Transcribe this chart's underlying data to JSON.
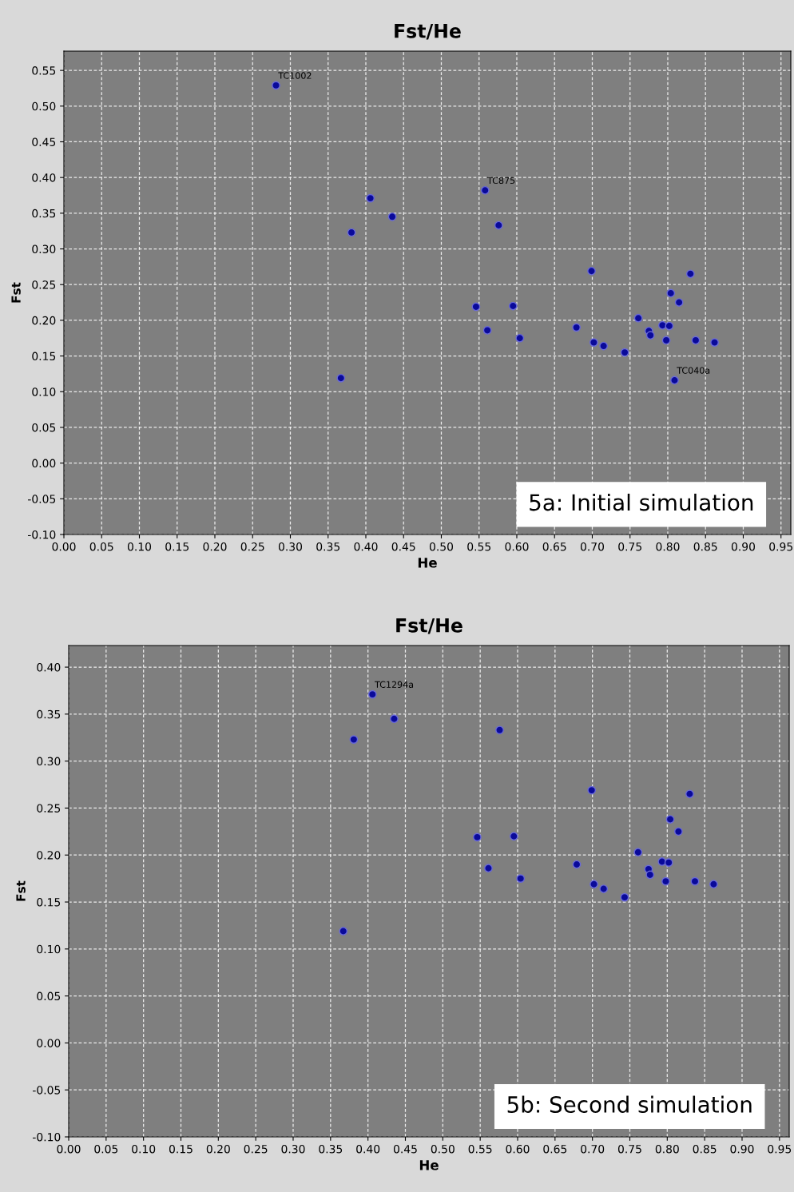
{
  "chart_data": [
    {
      "type": "scatter",
      "title": "Fst/He",
      "xlabel": "He",
      "ylabel": "Fst",
      "xlim": [
        0,
        0.963
      ],
      "ylim": [
        -0.1,
        0.577
      ],
      "xticks": [
        {
          "value": 0,
          "label": "0.00"
        },
        {
          "value": 0.05,
          "label": "0.05"
        },
        {
          "value": 0.1,
          "label": "0.10"
        },
        {
          "value": 0.15,
          "label": "0.15"
        },
        {
          "value": 0.2,
          "label": "0.20"
        },
        {
          "value": 0.25,
          "label": "0.25"
        },
        {
          "value": 0.3,
          "label": "0.30"
        },
        {
          "value": 0.35,
          "label": "0.35"
        },
        {
          "value": 0.4,
          "label": "0.40"
        },
        {
          "value": 0.45,
          "label": "0.45"
        },
        {
          "value": 0.5,
          "label": "0.50"
        },
        {
          "value": 0.55,
          "label": "0.55"
        },
        {
          "value": 0.6,
          "label": "0.60"
        },
        {
          "value": 0.65,
          "label": "0.65"
        },
        {
          "value": 0.7,
          "label": "0.70"
        },
        {
          "value": 0.75,
          "label": "0.75"
        },
        {
          "value": 0.8,
          "label": "0.80"
        },
        {
          "value": 0.85,
          "label": "0.85"
        },
        {
          "value": 0.9,
          "label": "0.90"
        },
        {
          "value": 0.95,
          "label": "0.95"
        }
      ],
      "yticks": [
        {
          "value": -0.1,
          "label": "-0.10"
        },
        {
          "value": -0.05,
          "label": "-0.05"
        },
        {
          "value": 0,
          "label": "0.00"
        },
        {
          "value": 0.05,
          "label": "0.05"
        },
        {
          "value": 0.1,
          "label": "0.10"
        },
        {
          "value": 0.15,
          "label": "0.15"
        },
        {
          "value": 0.2,
          "label": "0.20"
        },
        {
          "value": 0.25,
          "label": "0.25"
        },
        {
          "value": 0.3,
          "label": "0.30"
        },
        {
          "value": 0.35,
          "label": "0.35"
        },
        {
          "value": 0.4,
          "label": "0.40"
        },
        {
          "value": 0.45,
          "label": "0.45"
        },
        {
          "value": 0.5,
          "label": "0.50"
        },
        {
          "value": 0.55,
          "label": "0.55"
        }
      ],
      "grid": true,
      "legend": false,
      "marker": "circle",
      "series": [
        {
          "color": "#0a0a9a",
          "x": [
            0.281,
            0.406,
            0.381,
            0.435,
            0.367,
            0.558,
            0.576,
            0.546,
            0.561,
            0.595,
            0.604,
            0.699,
            0.679,
            0.702,
            0.715,
            0.743,
            0.761,
            0.775,
            0.777,
            0.793,
            0.802,
            0.798,
            0.804,
            0.815,
            0.83,
            0.837,
            0.862,
            0.809
          ],
          "values": [
            0.529,
            0.371,
            0.323,
            0.345,
            0.119,
            0.382,
            0.333,
            0.219,
            0.186,
            0.22,
            0.175,
            0.269,
            0.19,
            0.169,
            0.164,
            0.155,
            0.203,
            0.185,
            0.179,
            0.193,
            0.192,
            0.172,
            0.238,
            0.225,
            0.265,
            0.172,
            0.169,
            0.116
          ]
        }
      ],
      "annotations": [
        {
          "text": "TC1002",
          "x": 0.281,
          "y": 0.529
        },
        {
          "text": "TC875",
          "x": 0.558,
          "y": 0.382
        },
        {
          "text": "TC040a",
          "x": 0.809,
          "y": 0.116
        },
        "5a: Initial simulation"
      ]
    },
    {
      "type": "scatter",
      "title": "Fst/He",
      "xlabel": "He",
      "ylabel": "Fst",
      "xlim": [
        0,
        0.963
      ],
      "ylim": [
        -0.1,
        0.423
      ],
      "xticks": [
        {
          "value": 0,
          "label": "0.00"
        },
        {
          "value": 0.05,
          "label": "0.05"
        },
        {
          "value": 0.1,
          "label": "0.10"
        },
        {
          "value": 0.15,
          "label": "0.15"
        },
        {
          "value": 0.2,
          "label": "0.20"
        },
        {
          "value": 0.25,
          "label": "0.25"
        },
        {
          "value": 0.3,
          "label": "0.30"
        },
        {
          "value": 0.35,
          "label": "0.35"
        },
        {
          "value": 0.4,
          "label": "0.40"
        },
        {
          "value": 0.45,
          "label": "0.45"
        },
        {
          "value": 0.5,
          "label": "0.50"
        },
        {
          "value": 0.55,
          "label": "0.55"
        },
        {
          "value": 0.6,
          "label": "0.60"
        },
        {
          "value": 0.65,
          "label": "0.65"
        },
        {
          "value": 0.7,
          "label": "0.70"
        },
        {
          "value": 0.75,
          "label": "0.75"
        },
        {
          "value": 0.8,
          "label": "0.80"
        },
        {
          "value": 0.85,
          "label": "0.85"
        },
        {
          "value": 0.9,
          "label": "0.90"
        },
        {
          "value": 0.95,
          "label": "0.95"
        }
      ],
      "yticks": [
        {
          "value": -0.1,
          "label": "-0.10"
        },
        {
          "value": -0.05,
          "label": "-0.05"
        },
        {
          "value": 0,
          "label": "0.00"
        },
        {
          "value": 0.05,
          "label": "0.05"
        },
        {
          "value": 0.1,
          "label": "0.10"
        },
        {
          "value": 0.15,
          "label": "0.15"
        },
        {
          "value": 0.2,
          "label": "0.20"
        },
        {
          "value": 0.25,
          "label": "0.25"
        },
        {
          "value": 0.3,
          "label": "0.30"
        },
        {
          "value": 0.35,
          "label": "0.35"
        },
        {
          "value": 0.4,
          "label": "0.40"
        }
      ],
      "grid": true,
      "legend": false,
      "marker": "circle",
      "series": [
        {
          "color": "#0a0a9a",
          "x": [
            0.406,
            0.381,
            0.435,
            0.367,
            0.576,
            0.546,
            0.561,
            0.595,
            0.604,
            0.699,
            0.679,
            0.702,
            0.715,
            0.743,
            0.761,
            0.775,
            0.777,
            0.793,
            0.802,
            0.798,
            0.804,
            0.815,
            0.83,
            0.837,
            0.862
          ],
          "values": [
            0.371,
            0.323,
            0.345,
            0.119,
            0.333,
            0.219,
            0.186,
            0.22,
            0.175,
            0.269,
            0.19,
            0.169,
            0.164,
            0.155,
            0.203,
            0.185,
            0.179,
            0.193,
            0.192,
            0.172,
            0.238,
            0.225,
            0.265,
            0.172,
            0.169
          ]
        }
      ],
      "annotations": [
        {
          "text": "TC1294a",
          "x": 0.406,
          "y": 0.371
        },
        "5b: Second simulation"
      ]
    }
  ]
}
